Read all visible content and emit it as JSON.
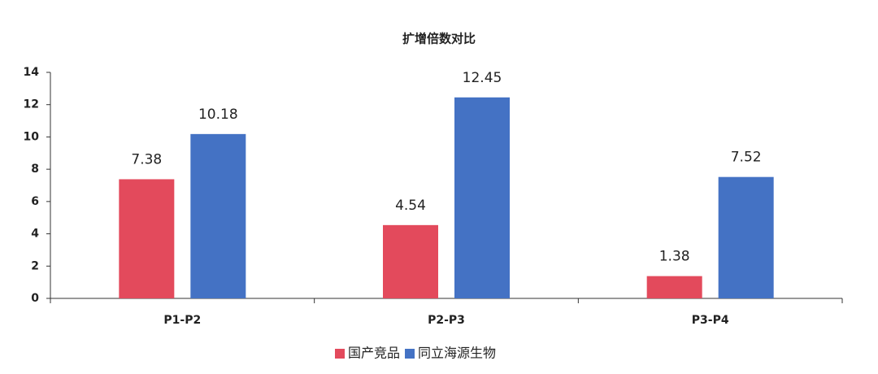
{
  "chart_data": {
    "type": "bar",
    "title": "扩增倍数对比",
    "categories": [
      "P1-P2",
      "P2-P3",
      "P3-P4"
    ],
    "series": [
      {
        "name": "国产竞品",
        "color": "#e34a5c",
        "values": [
          7.38,
          4.54,
          1.38
        ]
      },
      {
        "name": "同立海源生物",
        "color": "#4472c4",
        "values": [
          10.18,
          12.45,
          7.52
        ]
      }
    ],
    "ylim": [
      0,
      14
    ],
    "yticks": [
      0,
      2,
      4,
      6,
      8,
      10,
      12,
      14
    ],
    "grid": false,
    "legend": "bottom"
  }
}
